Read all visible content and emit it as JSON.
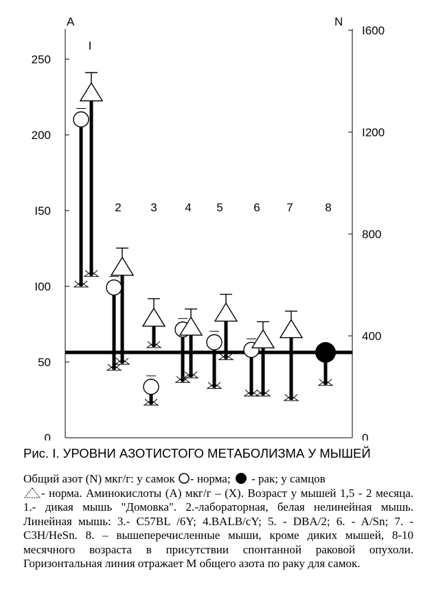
{
  "chart_data": {
    "type": "scatter",
    "left_axis": {
      "letter": "A",
      "ticks": [
        "250",
        "200",
        "I50",
        "I00",
        "50",
        "0"
      ],
      "range": [
        0,
        280
      ]
    },
    "right_axis": {
      "letter": "N",
      "ticks": [
        "I600",
        "I200",
        "800",
        "400",
        "0"
      ],
      "range": [
        0,
        1600
      ]
    },
    "groups": [
      {
        "label": "I",
        "id": 1
      },
      {
        "label": "2",
        "id": 2
      },
      {
        "label": "3",
        "id": 3
      },
      {
        "label": "4",
        "id": 4
      },
      {
        "label": "5",
        "id": 5
      },
      {
        "label": "6",
        "id": 6
      },
      {
        "label": "7",
        "id": 7
      },
      {
        "label": "8",
        "id": 8
      }
    ],
    "series": [
      {
        "name": "норма самки (N)",
        "marker": "circle-open",
        "points": [
          {
            "group": 1,
            "N": 1250,
            "err": 30,
            "A": 100
          },
          {
            "group": 2,
            "N": 590,
            "err": 20,
            "A": 45
          },
          {
            "group": 3,
            "N": 200,
            "err": 20,
            "A": 22
          },
          {
            "group": 4,
            "N": 425,
            "err": 15,
            "A": 37
          },
          {
            "group": 5,
            "N": 375,
            "err": 15,
            "A": 33
          },
          {
            "group": 6,
            "N": 345,
            "err": 12,
            "A": 28
          }
        ]
      },
      {
        "name": "норма самцы (N)",
        "marker": "triangle-open",
        "points": [
          {
            "group": 1,
            "N": 1350,
            "err": 60,
            "A": 107
          },
          {
            "group": 2,
            "N": 665,
            "err": 45,
            "A": 49
          },
          {
            "group": 3,
            "N": 465,
            "err": 50,
            "A": 60
          },
          {
            "group": 4,
            "N": 430,
            "err": 30,
            "A": 40
          },
          {
            "group": 5,
            "N": 485,
            "err": 40,
            "A": 52
          },
          {
            "group": 6,
            "N": 380,
            "err": 30,
            "A": 28
          },
          {
            "group": 7,
            "N": 420,
            "err": 35,
            "A": 25
          }
        ]
      },
      {
        "name": "рак самки (N)",
        "marker": "circle-filled",
        "points": [
          {
            "group": 8,
            "N": 335,
            "err": 15,
            "A": 35
          }
        ]
      }
    ],
    "reference_line": {
      "N": 335
    }
  },
  "caption": {
    "title": "Рис. I. УРОВНИ АЗОТИСТОГО МЕТАБОЛИЗМА У МЫШЕЙ",
    "line1_a": "Общий азот (N) мкг/г: у самок",
    "line1_b": "- норма;",
    "line1_c": "- рак; у самцов",
    "line2_a": "- норма. Аминокислоты (А) мкг/г – (Х). Возраст у мышей 1,5 - 2 месяца. 1.- дикая мышь \"Домовка\". 2.-лабораторная, белая нелинейная мышь. Линейная мышь: 3.- C57BL /6Y; 4.BALB/cY; 5. - DBA/2; 6. - A/Sn; 7. - C3H/HeSn. 8. – вышеперечисленные мыши, кроме диких мышей, 8-10 месячного возраста в присутствии спонтанной раковой опухоли. Горизонтальная линия  отражает М общего азота по раку для самок."
  }
}
